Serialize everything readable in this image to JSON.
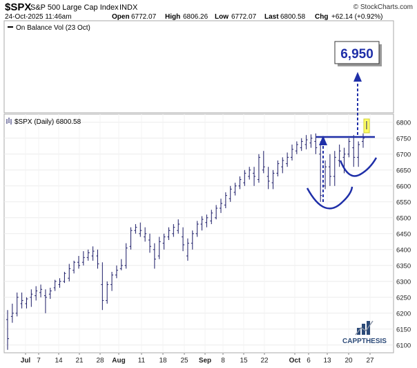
{
  "header": {
    "symbol": "$SPX",
    "name": "S&P 500 Large Cap Index",
    "exchange": "INDX",
    "datetime": "24-Oct-2025 11:46am",
    "open_label": "Open",
    "open_value": "6772.07",
    "high_label": "High",
    "high_value": "6806.26",
    "low_label": "Low",
    "low_value": "6772.07",
    "last_label": "Last",
    "last_value": "6800.58",
    "chg_label": "Chg",
    "chg_value": "+62.14 (+0.92%)",
    "watermark": "© StockCharts.com"
  },
  "upper_panel": {
    "legend": "On Balance Vol (23 Oct)",
    "target_label": "6,950"
  },
  "price_panel": {
    "legend": "$SPX (Daily) 6800.58"
  },
  "logo": {
    "text": "CAPPTHESIS"
  },
  "colors": {
    "bars": "#1a1a66",
    "annotation": "#1f2fa8",
    "marker": "#ffff66",
    "logo_blue": "#2c4a78"
  },
  "chart_data": {
    "type": "ohlc",
    "title": "$SPX (Daily) 6800.58",
    "y_ticks": [
      6100,
      6150,
      6200,
      6250,
      6300,
      6350,
      6400,
      6450,
      6500,
      6550,
      6600,
      6650,
      6700,
      6750,
      6800
    ],
    "ylim": [
      6080,
      6830
    ],
    "x_labels": [
      "Jul",
      "7",
      "14",
      "21",
      "28",
      "Aug",
      "11",
      "18",
      "25",
      "Sep",
      "8",
      "15",
      "22",
      "Oct",
      "6",
      "13",
      "20",
      "27"
    ],
    "grid": true,
    "bars": [
      [
        6180,
        6210,
        6085,
        6120
      ],
      [
        6190,
        6230,
        6170,
        6200
      ],
      [
        6200,
        6265,
        6190,
        6250
      ],
      [
        6230,
        6265,
        6215,
        6240
      ],
      [
        6230,
        6250,
        6215,
        6245
      ],
      [
        6250,
        6275,
        6220,
        6260
      ],
      [
        6255,
        6285,
        6240,
        6270
      ],
      [
        6265,
        6290,
        6250,
        6275
      ],
      [
        6255,
        6275,
        6200,
        6250
      ],
      [
        6260,
        6280,
        6245,
        6270
      ],
      [
        6280,
        6305,
        6270,
        6300
      ],
      [
        6290,
        6310,
        6280,
        6300
      ],
      [
        6300,
        6330,
        6295,
        6325
      ],
      [
        6310,
        6355,
        6300,
        6340
      ],
      [
        6335,
        6365,
        6325,
        6360
      ],
      [
        6360,
        6380,
        6340,
        6350
      ],
      [
        6360,
        6395,
        6350,
        6375
      ],
      [
        6375,
        6400,
        6365,
        6390
      ],
      [
        6380,
        6410,
        6365,
        6395
      ],
      [
        6380,
        6400,
        6340,
        6355
      ],
      [
        6290,
        6360,
        6210,
        6240
      ],
      [
        6240,
        6300,
        6230,
        6290
      ],
      [
        6290,
        6330,
        6270,
        6320
      ],
      [
        6320,
        6350,
        6310,
        6335
      ],
      [
        6340,
        6370,
        6335,
        6350
      ],
      [
        6350,
        6420,
        6340,
        6405
      ],
      [
        6410,
        6470,
        6400,
        6460
      ],
      [
        6460,
        6480,
        6450,
        6470
      ],
      [
        6450,
        6485,
        6440,
        6460
      ],
      [
        6440,
        6470,
        6425,
        6450
      ],
      [
        6430,
        6450,
        6390,
        6410
      ],
      [
        6400,
        6420,
        6340,
        6370
      ],
      [
        6380,
        6440,
        6370,
        6425
      ],
      [
        6420,
        6450,
        6400,
        6440
      ],
      [
        6440,
        6470,
        6430,
        6460
      ],
      [
        6450,
        6480,
        6440,
        6470
      ],
      [
        6460,
        6495,
        6450,
        6480
      ],
      [
        6440,
        6470,
        6395,
        6415
      ],
      [
        6380,
        6435,
        6365,
        6420
      ],
      [
        6420,
        6460,
        6400,
        6450
      ],
      [
        6450,
        6490,
        6440,
        6480
      ],
      [
        6480,
        6505,
        6460,
        6495
      ],
      [
        6485,
        6510,
        6470,
        6500
      ],
      [
        6490,
        6525,
        6480,
        6515
      ],
      [
        6500,
        6540,
        6495,
        6530
      ],
      [
        6530,
        6560,
        6515,
        6545
      ],
      [
        6540,
        6580,
        6530,
        6570
      ],
      [
        6560,
        6600,
        6550,
        6590
      ],
      [
        6580,
        6610,
        6570,
        6600
      ],
      [
        6600,
        6630,
        6590,
        6620
      ],
      [
        6610,
        6650,
        6600,
        6640
      ],
      [
        6630,
        6660,
        6620,
        6650
      ],
      [
        6640,
        6660,
        6600,
        6630
      ],
      [
        6620,
        6700,
        6610,
        6690
      ],
      [
        6650,
        6710,
        6640,
        6660
      ],
      [
        6630,
        6660,
        6590,
        6615
      ],
      [
        6610,
        6650,
        6590,
        6640
      ],
      [
        6640,
        6680,
        6630,
        6670
      ],
      [
        6660,
        6690,
        6640,
        6680
      ],
      [
        6670,
        6705,
        6660,
        6690
      ],
      [
        6690,
        6730,
        6680,
        6715
      ],
      [
        6710,
        6740,
        6700,
        6730
      ],
      [
        6720,
        6750,
        6710,
        6740
      ],
      [
        6730,
        6760,
        6715,
        6745
      ],
      [
        6735,
        6762,
        6720,
        6750
      ],
      [
        6740,
        6765,
        6700,
        6720
      ],
      [
        6700,
        6740,
        6550,
        6570
      ],
      [
        6600,
        6680,
        6590,
        6660
      ],
      [
        6660,
        6700,
        6600,
        6630
      ],
      [
        6630,
        6710,
        6600,
        6690
      ],
      [
        6680,
        6730,
        6660,
        6710
      ],
      [
        6690,
        6720,
        6640,
        6700
      ],
      [
        6700,
        6750,
        6690,
        6740
      ],
      [
        6720,
        6760,
        6660,
        6690
      ],
      [
        6690,
        6740,
        6660,
        6730
      ],
      [
        6740,
        6765,
        6720,
        6750
      ]
    ]
  }
}
